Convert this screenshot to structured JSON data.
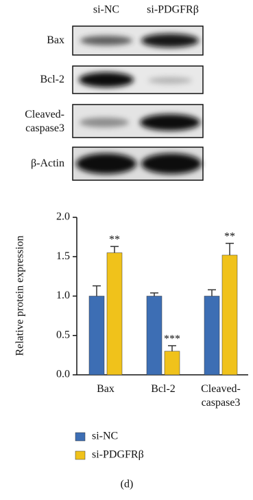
{
  "blot": {
    "columns": [
      "si-NC",
      "si-PDGFRβ"
    ],
    "rows": [
      "Bax",
      "Bcl-2",
      "Cleaved-caspase3",
      "β-Actin"
    ]
  },
  "chart_data": {
    "type": "bar",
    "ylabel": "Relative protein expression",
    "categories": [
      "Bax",
      "Bcl-2",
      "Cleaved-caspase3"
    ],
    "series": [
      {
        "name": "si-NC",
        "color": "#3d6eb4",
        "values": [
          1.0,
          1.0,
          1.0
        ],
        "errors": [
          0.13,
          0.04,
          0.08
        ]
      },
      {
        "name": "si-PDGFRβ",
        "color": "#f0c21b",
        "values": [
          1.55,
          0.3,
          1.52
        ],
        "errors": [
          0.08,
          0.07,
          0.15
        ],
        "significance": [
          "**",
          "***",
          "**"
        ]
      }
    ],
    "ylim": [
      0,
      2
    ],
    "yticks": [
      {
        "value": 0,
        "label": "0.0"
      },
      {
        "value": 0.5,
        "label": "0.5"
      },
      {
        "value": 1,
        "label": "1.0"
      },
      {
        "value": 1.5,
        "label": "1.5"
      },
      {
        "value": 2,
        "label": "2.0"
      }
    ]
  },
  "caption": "(d)"
}
